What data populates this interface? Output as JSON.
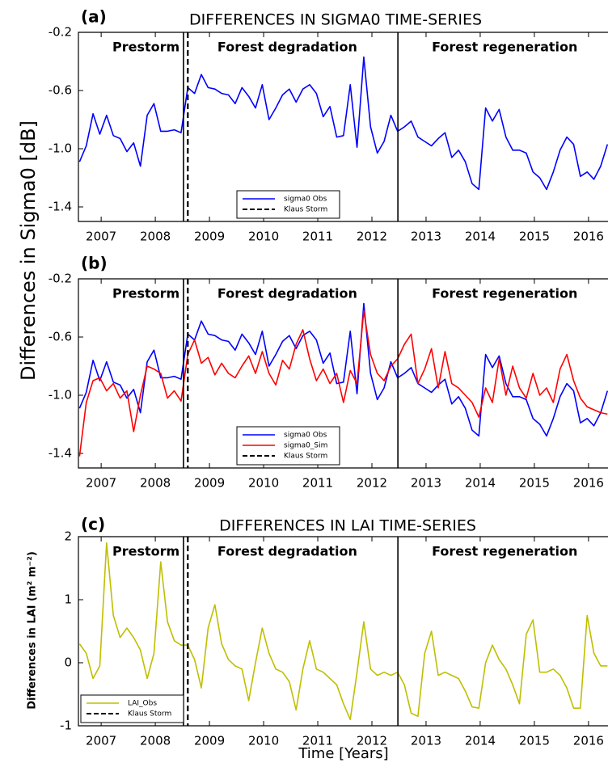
{
  "chart_data": [
    {
      "type": "line",
      "panel_label": "(a)",
      "title": "DIFFERENCES IN SIGMA0 TIME-SERIES",
      "ylabel": "Differences in Sigma0 [dB]",
      "x": [
        2006.6,
        2006.725,
        2006.85,
        2006.975,
        2007.1,
        2007.225,
        2007.35,
        2007.475,
        2007.6,
        2007.725,
        2007.85,
        2007.975,
        2008.1,
        2008.225,
        2008.35,
        2008.475,
        2008.6,
        2008.725,
        2008.85,
        2008.975,
        2009.1,
        2009.225,
        2009.35,
        2009.475,
        2009.6,
        2009.725,
        2009.85,
        2009.975,
        2010.1,
        2010.225,
        2010.35,
        2010.475,
        2010.6,
        2010.725,
        2010.85,
        2010.975,
        2011.1,
        2011.225,
        2011.35,
        2011.475,
        2011.6,
        2011.725,
        2011.85,
        2011.975,
        2012.1,
        2012.225,
        2012.35,
        2012.475,
        2012.6,
        2012.725,
        2012.85,
        2012.975,
        2013.1,
        2013.225,
        2013.35,
        2013.475,
        2013.6,
        2013.725,
        2013.85,
        2013.975,
        2014.1,
        2014.225,
        2014.35,
        2014.475,
        2014.6,
        2014.725,
        2014.85,
        2014.975,
        2015.1,
        2015.225,
        2015.35,
        2015.475,
        2015.6,
        2015.725,
        2015.85,
        2015.975,
        2016.1,
        2016.225,
        2016.35
      ],
      "series": [
        {
          "name": "sigma0 Obs",
          "color": "#0000ff",
          "values": [
            -1.09,
            -0.98,
            -0.76,
            -0.9,
            -0.77,
            -0.91,
            -0.93,
            -1.02,
            -0.96,
            -1.12,
            -0.77,
            -0.69,
            -0.88,
            -0.88,
            -0.87,
            -0.89,
            -0.58,
            -0.62,
            -0.49,
            -0.58,
            -0.59,
            -0.62,
            -0.63,
            -0.69,
            -0.58,
            -0.64,
            -0.72,
            -0.56,
            -0.8,
            -0.72,
            -0.63,
            -0.59,
            -0.68,
            -0.59,
            -0.56,
            -0.62,
            -0.78,
            -0.71,
            -0.92,
            -0.91,
            -0.56,
            -0.99,
            -0.37,
            -0.85,
            -1.03,
            -0.95,
            -0.77,
            -0.88,
            -0.85,
            -0.81,
            -0.92,
            -0.95,
            -0.98,
            -0.93,
            -0.89,
            -1.06,
            -1.01,
            -1.09,
            -1.24,
            -1.28,
            -0.72,
            -0.81,
            -0.73,
            -0.92,
            -1.01,
            -1.01,
            -1.03,
            -1.16,
            -1.2,
            -1.28,
            -1.16,
            -1.01,
            -0.92,
            -0.97,
            -1.19,
            -1.16,
            -1.21,
            -1.12,
            -0.97
          ]
        }
      ],
      "xlim": [
        2006.58,
        2016.36
      ],
      "xticks": [
        2007,
        2008,
        2009,
        2010,
        2011,
        2012,
        2013,
        2014,
        2015,
        2016
      ],
      "ylim": [
        -1.5,
        -0.2
      ],
      "yticks": [
        -0.2,
        -0.6,
        {
          "value": -1,
          "label": "-1.0"
        },
        -1.4
      ],
      "boundaries": [
        2008.52,
        2012.48
      ],
      "regions": [
        "Prestorm",
        "Forest degradation",
        "Forest regeneration"
      ],
      "event": {
        "name": "Klaus Storm",
        "x": 2008.6
      },
      "legend": "lower center"
    },
    {
      "type": "line",
      "panel_label": "(b)",
      "x": [
        2006.6,
        2006.725,
        2006.85,
        2006.975,
        2007.1,
        2007.225,
        2007.35,
        2007.475,
        2007.6,
        2007.725,
        2007.85,
        2007.975,
        2008.1,
        2008.225,
        2008.35,
        2008.475,
        2008.6,
        2008.725,
        2008.85,
        2008.975,
        2009.1,
        2009.225,
        2009.35,
        2009.475,
        2009.6,
        2009.725,
        2009.85,
        2009.975,
        2010.1,
        2010.225,
        2010.35,
        2010.475,
        2010.6,
        2010.725,
        2010.85,
        2010.975,
        2011.1,
        2011.225,
        2011.35,
        2011.475,
        2011.6,
        2011.725,
        2011.85,
        2011.975,
        2012.1,
        2012.225,
        2012.35,
        2012.475,
        2012.6,
        2012.725,
        2012.85,
        2012.975,
        2013.1,
        2013.225,
        2013.35,
        2013.475,
        2013.6,
        2013.725,
        2013.85,
        2013.975,
        2014.1,
        2014.225,
        2014.35,
        2014.475,
        2014.6,
        2014.725,
        2014.85,
        2014.975,
        2015.1,
        2015.225,
        2015.35,
        2015.475,
        2015.6,
        2015.725,
        2015.85,
        2015.975,
        2016.1,
        2016.225,
        2016.35
      ],
      "series": [
        {
          "name": "sigma0 Obs",
          "color": "#0000ff",
          "values": [
            -1.09,
            -0.98,
            -0.76,
            -0.9,
            -0.77,
            -0.91,
            -0.93,
            -1.02,
            -0.96,
            -1.12,
            -0.77,
            -0.69,
            -0.88,
            -0.88,
            -0.87,
            -0.89,
            -0.58,
            -0.62,
            -0.49,
            -0.58,
            -0.59,
            -0.62,
            -0.63,
            -0.69,
            -0.58,
            -0.64,
            -0.72,
            -0.56,
            -0.8,
            -0.72,
            -0.63,
            -0.59,
            -0.68,
            -0.59,
            -0.56,
            -0.62,
            -0.78,
            -0.71,
            -0.92,
            -0.91,
            -0.56,
            -0.99,
            -0.37,
            -0.85,
            -1.03,
            -0.95,
            -0.77,
            -0.88,
            -0.85,
            -0.81,
            -0.92,
            -0.95,
            -0.98,
            -0.93,
            -0.89,
            -1.06,
            -1.01,
            -1.09,
            -1.24,
            -1.28,
            -0.72,
            -0.81,
            -0.73,
            -0.92,
            -1.01,
            -1.01,
            -1.03,
            -1.16,
            -1.2,
            -1.28,
            -1.16,
            -1.01,
            -0.92,
            -0.97,
            -1.19,
            -1.16,
            -1.21,
            -1.12,
            -0.97
          ]
        },
        {
          "name": "sigma0_Sim",
          "color": "#ff0000",
          "values": [
            -1.42,
            -1.05,
            -0.9,
            -0.88,
            -0.97,
            -0.92,
            -1.02,
            -0.97,
            -1.25,
            -1.0,
            -0.8,
            -0.82,
            -0.85,
            -1.02,
            -0.97,
            -1.04,
            -0.72,
            -0.62,
            -0.78,
            -0.74,
            -0.86,
            -0.78,
            -0.85,
            -0.88,
            -0.8,
            -0.73,
            -0.85,
            -0.7,
            -0.85,
            -0.93,
            -0.76,
            -0.82,
            -0.65,
            -0.55,
            -0.75,
            -0.9,
            -0.82,
            -0.92,
            -0.85,
            -1.05,
            -0.83,
            -0.92,
            -0.42,
            -0.72,
            -0.85,
            -0.9,
            -0.8,
            -0.75,
            -0.65,
            -0.58,
            -0.92,
            -0.82,
            -0.68,
            -0.95,
            -0.7,
            -0.92,
            -0.95,
            -1.0,
            -1.05,
            -1.15,
            -0.95,
            -1.05,
            -0.75,
            -1.0,
            -0.8,
            -0.95,
            -1.02,
            -0.85,
            -1.0,
            -0.95,
            -1.05,
            -0.82,
            -0.72,
            -0.9,
            -1.02,
            -1.08,
            -1.1,
            -1.12,
            -1.13
          ]
        }
      ],
      "xlim": [
        2006.58,
        2016.36
      ],
      "xticks": [
        2007,
        2008,
        2009,
        2010,
        2011,
        2012,
        2013,
        2014,
        2015,
        2016
      ],
      "ylim": [
        -1.5,
        -0.2
      ],
      "yticks": [
        -0.2,
        -0.6,
        {
          "value": -1,
          "label": "-1.0"
        },
        -1.4
      ],
      "boundaries": [
        2008.52,
        2012.48
      ],
      "regions": [
        "Prestorm",
        "Forest degradation",
        "Forest regeneration"
      ],
      "event": {
        "name": "Klaus Storm",
        "x": 2008.6
      },
      "legend": "lower center"
    },
    {
      "type": "line",
      "panel_label": "(c)",
      "title": "DIFFERENCES IN LAI TIME-SERIES",
      "ylabel": "Differences in LAI (m² m⁻²)",
      "xlabel": "Time [Years]",
      "x": [
        2006.6,
        2006.725,
        2006.85,
        2006.975,
        2007.1,
        2007.225,
        2007.35,
        2007.475,
        2007.6,
        2007.725,
        2007.85,
        2007.975,
        2008.1,
        2008.225,
        2008.35,
        2008.475,
        2008.6,
        2008.725,
        2008.85,
        2008.975,
        2009.1,
        2009.225,
        2009.35,
        2009.475,
        2009.6,
        2009.725,
        2009.85,
        2009.975,
        2010.1,
        2010.225,
        2010.35,
        2010.475,
        2010.6,
        2010.725,
        2010.85,
        2010.975,
        2011.1,
        2011.225,
        2011.35,
        2011.475,
        2011.6,
        2011.725,
        2011.85,
        2011.975,
        2012.1,
        2012.225,
        2012.35,
        2012.475,
        2012.6,
        2012.725,
        2012.85,
        2012.975,
        2013.1,
        2013.225,
        2013.35,
        2013.475,
        2013.6,
        2013.725,
        2013.85,
        2013.975,
        2014.1,
        2014.225,
        2014.35,
        2014.475,
        2014.6,
        2014.725,
        2014.85,
        2014.975,
        2015.1,
        2015.225,
        2015.35,
        2015.475,
        2015.6,
        2015.725,
        2015.85,
        2015.975,
        2016.1,
        2016.225,
        2016.35
      ],
      "series": [
        {
          "name": "LAI_Obs",
          "color": "#bfbf00",
          "values": [
            0.3,
            0.15,
            -0.25,
            -0.05,
            1.9,
            0.75,
            0.4,
            0.55,
            0.4,
            0.2,
            -0.25,
            0.15,
            1.6,
            0.65,
            0.35,
            0.28,
            0.28,
            0.05,
            -0.4,
            0.55,
            0.92,
            0.3,
            0.05,
            -0.05,
            -0.1,
            -0.6,
            0.0,
            0.55,
            0.15,
            -0.1,
            -0.15,
            -0.3,
            -0.75,
            -0.1,
            0.35,
            -0.1,
            -0.15,
            -0.25,
            -0.35,
            -0.65,
            -0.9,
            -0.15,
            0.65,
            -0.1,
            -0.2,
            -0.15,
            -0.2,
            -0.15,
            -0.35,
            -0.8,
            -0.85,
            0.15,
            0.5,
            -0.2,
            -0.15,
            -0.2,
            -0.25,
            -0.45,
            -0.7,
            -0.72,
            0.0,
            0.28,
            0.05,
            -0.1,
            -0.35,
            -0.65,
            0.45,
            0.68,
            -0.15,
            -0.15,
            -0.1,
            -0.2,
            -0.4,
            -0.72,
            -0.72,
            0.75,
            0.15,
            -0.05,
            -0.05
          ]
        }
      ],
      "xlim": [
        2006.58,
        2016.36
      ],
      "xticks": [
        2007,
        2008,
        2009,
        2010,
        2011,
        2012,
        2013,
        2014,
        2015,
        2016
      ],
      "ylim": [
        -1,
        2
      ],
      "yticks": [
        2,
        1,
        0,
        -1
      ],
      "boundaries": [
        2008.52,
        2012.48
      ],
      "regions": [
        "Prestorm",
        "Forest degradation",
        "Forest regeneration"
      ],
      "event": {
        "name": "Klaus Storm",
        "x": 2008.6
      },
      "legend": "lower left"
    }
  ]
}
